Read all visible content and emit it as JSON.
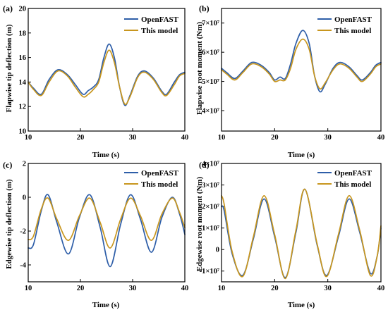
{
  "colors": {
    "openfast": "#2e5ea8",
    "model": "#c8961e"
  },
  "chart_data": [
    {
      "type": "line",
      "panel_label": "(a)",
      "xlabel": "Time (s)",
      "ylabel": "Flapwise tip deflection (m)",
      "xlim": [
        10,
        40
      ],
      "ylim": [
        10,
        20
      ],
      "xticks": [
        10,
        20,
        30,
        40
      ],
      "xtick_labels": [
        "10",
        "20",
        "30",
        "40"
      ],
      "yticks": [
        10,
        12,
        14,
        16,
        18,
        20
      ],
      "ytick_labels": [
        "10",
        "12",
        "14",
        "16",
        "18",
        "20"
      ],
      "legend_position": "top-right",
      "series": [
        {
          "name": "OpenFAST",
          "color_key": "openfast",
          "x": [
            10,
            11,
            12.5,
            14,
            15.7,
            17.5,
            19,
            20.5,
            21.5,
            22.5,
            23.5,
            24.5,
            25.5,
            26.5,
            27.5,
            28.5,
            29.5,
            31,
            32.3,
            34,
            35.5,
            36.5,
            38,
            39,
            40
          ],
          "y": [
            14.0,
            13.5,
            13.0,
            14.2,
            15.0,
            14.6,
            13.8,
            13.0,
            13.3,
            13.6,
            14.2,
            16.0,
            17.1,
            16.0,
            13.6,
            12.1,
            12.9,
            14.5,
            14.9,
            14.3,
            13.3,
            13.0,
            14.0,
            14.6,
            14.8
          ]
        },
        {
          "name": "This model",
          "color_key": "model",
          "x": [
            10,
            11,
            12.5,
            14,
            15.7,
            17.5,
            19,
            20.5,
            21.5,
            22.5,
            23.5,
            24.5,
            25.5,
            26.5,
            27.5,
            28.5,
            29.5,
            31,
            32.3,
            34,
            35.5,
            36.5,
            38,
            39,
            40
          ],
          "y": [
            14.0,
            13.4,
            12.9,
            14.0,
            14.9,
            14.5,
            13.6,
            12.8,
            13.0,
            13.4,
            14.0,
            15.6,
            16.6,
            15.6,
            13.6,
            12.2,
            12.8,
            14.4,
            14.8,
            14.2,
            13.2,
            12.9,
            13.8,
            14.5,
            14.7
          ]
        }
      ]
    },
    {
      "type": "line",
      "panel_label": "(b)",
      "xlabel": "Time (s)",
      "ylabel": "Flapwise root moment (Nm)",
      "xlim": [
        10,
        40
      ],
      "ylim": [
        3.3,
        7.5
      ],
      "xticks": [
        10,
        20,
        30,
        40
      ],
      "xtick_labels": [
        "10",
        "20",
        "30",
        "40"
      ],
      "yticks": [
        4,
        5,
        6,
        7
      ],
      "ytick_labels": [
        "4×10⁷",
        "5×10⁷",
        "6×10⁷",
        "7×10⁷"
      ],
      "legend_position": "top-right",
      "series": [
        {
          "name": "OpenFAST",
          "color_key": "openfast",
          "x": [
            10,
            11,
            12.5,
            14,
            15.7,
            17.5,
            19,
            20,
            21,
            22,
            23,
            24,
            25.3,
            26.5,
            27.5,
            28.5,
            29.5,
            31,
            32.3,
            34,
            35.5,
            36.5,
            38,
            39,
            40
          ],
          "y": [
            5.45,
            5.3,
            5.1,
            5.35,
            5.65,
            5.55,
            5.3,
            5.05,
            5.15,
            5.1,
            5.6,
            6.3,
            6.75,
            6.3,
            5.2,
            4.65,
            4.9,
            5.45,
            5.65,
            5.5,
            5.2,
            5.05,
            5.3,
            5.55,
            5.65
          ]
        },
        {
          "name": "This model",
          "color_key": "model",
          "x": [
            10,
            11,
            12.5,
            14,
            15.7,
            17.5,
            19,
            20,
            21,
            22,
            23,
            24,
            25.3,
            26.5,
            27.5,
            28.5,
            29.5,
            31,
            32.3,
            34,
            35.5,
            36.5,
            38,
            39,
            40
          ],
          "y": [
            5.4,
            5.25,
            5.05,
            5.3,
            5.6,
            5.5,
            5.25,
            5.0,
            5.05,
            5.05,
            5.45,
            6.1,
            6.45,
            6.1,
            5.2,
            4.75,
            4.95,
            5.4,
            5.6,
            5.45,
            5.15,
            5.0,
            5.25,
            5.5,
            5.6
          ]
        }
      ]
    },
    {
      "type": "line",
      "panel_label": "(c)",
      "xlabel": "Time (s)",
      "ylabel": "Edgewise tip deflection (m)",
      "xlim": [
        10,
        40
      ],
      "ylim": [
        -5,
        2
      ],
      "xticks": [
        10,
        20,
        30,
        40
      ],
      "xtick_labels": [
        "10",
        "20",
        "30",
        "40"
      ],
      "yticks": [
        -4,
        -2,
        0,
        2
      ],
      "ytick_labels": [
        "-4",
        "-2",
        "0",
        "2"
      ],
      "legend_position": "top-right",
      "series": [
        {
          "name": "OpenFAST",
          "color_key": "openfast",
          "x": [
            10,
            11,
            12.5,
            13.8,
            15.5,
            17.7,
            19.8,
            21.8,
            23.8,
            25.7,
            27.7,
            29.6,
            31.5,
            33.6,
            35.6,
            37.6,
            39,
            40
          ],
          "y": [
            -3.0,
            -2.8,
            -0.8,
            0.15,
            -1.5,
            -3.35,
            -1.2,
            0.15,
            -1.8,
            -4.1,
            -1.6,
            0.15,
            -1.3,
            -3.25,
            -1.2,
            0.0,
            -1.0,
            -2.2
          ]
        },
        {
          "name": "This model",
          "color_key": "model",
          "x": [
            10,
            11,
            12.5,
            13.8,
            15.5,
            17.7,
            19.8,
            21.8,
            23.8,
            25.7,
            27.7,
            29.6,
            31.5,
            33.6,
            35.6,
            37.6,
            39,
            40
          ],
          "y": [
            -2.5,
            -2.3,
            -0.7,
            -0.05,
            -1.3,
            -2.55,
            -1.1,
            -0.05,
            -1.5,
            -3.0,
            -1.3,
            -0.05,
            -1.1,
            -2.55,
            -1.0,
            -0.05,
            -0.9,
            -1.8
          ]
        }
      ]
    },
    {
      "type": "line",
      "panel_label": "(d)",
      "xlabel": "Time (s)",
      "ylabel": "Edgewise root moment (Nm)",
      "xlim": [
        10,
        40
      ],
      "ylim": [
        -1.5,
        4
      ],
      "xticks": [
        10,
        20,
        30,
        40
      ],
      "xtick_labels": [
        "10",
        "20",
        "30",
        "40"
      ],
      "yticks": [
        -1,
        0,
        1,
        2,
        3,
        4
      ],
      "ytick_labels": [
        "-1×10⁷",
        "0",
        "1×10⁷",
        "2×10⁷",
        "3×10⁷",
        "4×10⁷"
      ],
      "legend_position": "top-right",
      "series": [
        {
          "name": "OpenFAST",
          "color_key": "openfast",
          "x": [
            10,
            10.5,
            12,
            14,
            16,
            18,
            20,
            22,
            24,
            25.7,
            28,
            29.8,
            32,
            34,
            36,
            38,
            39.3,
            40
          ],
          "y": [
            2.0,
            1.8,
            -0.2,
            -1.2,
            0.5,
            2.35,
            0.6,
            -1.3,
            0.8,
            2.8,
            0.2,
            -1.2,
            0.6,
            2.35,
            0.8,
            -1.1,
            -0.3,
            1.0
          ]
        },
        {
          "name": "This model",
          "color_key": "model",
          "x": [
            10,
            10.5,
            12,
            14,
            16,
            18,
            20,
            22,
            24,
            25.7,
            28,
            29.8,
            32,
            34,
            36,
            38,
            39.3,
            40
          ],
          "y": [
            2.5,
            2.1,
            -0.1,
            -1.25,
            0.6,
            2.5,
            0.7,
            -1.35,
            0.9,
            2.8,
            0.25,
            -1.25,
            0.7,
            2.5,
            0.9,
            -1.2,
            -0.3,
            1.1
          ]
        }
      ]
    }
  ]
}
